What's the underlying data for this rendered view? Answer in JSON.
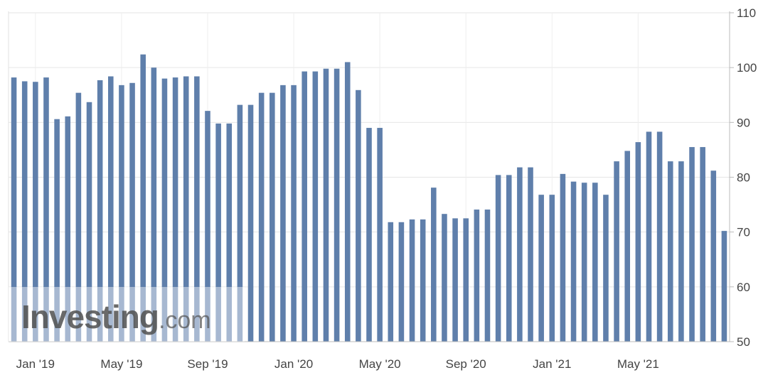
{
  "chart_data": {
    "type": "bar",
    "title": "",
    "xlabel": "",
    "ylabel": "",
    "ylim": [
      50,
      110
    ],
    "y_ticks": [
      50,
      60,
      70,
      80,
      90,
      100,
      110
    ],
    "y_axis_position": "right",
    "grid": true,
    "x_tick_labels": [
      {
        "label": "Jan '19",
        "index": 2
      },
      {
        "label": "May '19",
        "index": 10
      },
      {
        "label": "Sep '19",
        "index": 18
      },
      {
        "label": "Jan '20",
        "index": 26
      },
      {
        "label": "May '20",
        "index": 34
      },
      {
        "label": "Sep '20",
        "index": 42
      },
      {
        "label": "Jan '21",
        "index": 50
      },
      {
        "label": "May '21",
        "index": 58
      }
    ],
    "values": [
      98.2,
      97.5,
      97.4,
      98.2,
      90.6,
      91.1,
      95.4,
      93.7,
      97.7,
      98.4,
      96.8,
      97.2,
      102.4,
      100.0,
      98.0,
      98.2,
      98.4,
      98.4,
      92.1,
      89.8,
      89.8,
      93.2,
      93.2,
      95.4,
      95.4,
      96.8,
      96.8,
      99.3,
      99.3,
      99.8,
      99.8,
      101.0,
      95.9,
      89.0,
      89.0,
      71.8,
      71.8,
      72.3,
      72.3,
      78.1,
      73.3,
      72.5,
      72.5,
      74.1,
      74.1,
      80.4,
      80.4,
      81.8,
      81.8,
      76.8,
      76.8,
      80.6,
      79.2,
      79.0,
      79.0,
      76.8,
      82.9,
      84.8,
      86.4,
      88.3,
      88.3,
      82.9,
      82.9,
      85.5,
      85.5,
      81.2,
      70.2
    ],
    "bar_color": "#5f7fab"
  },
  "watermark": {
    "brand": "Investing",
    "suffix": ".com"
  }
}
